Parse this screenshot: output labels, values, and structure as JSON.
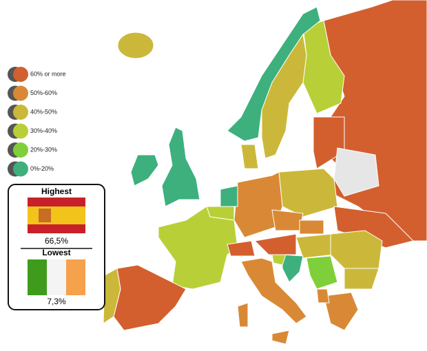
{
  "legend": {
    "items": [
      {
        "label": "60% or more",
        "color": "#d35f2e"
      },
      {
        "label": "50%-60%",
        "color": "#d98935"
      },
      {
        "label": "40%-50%",
        "color": "#cbb83a"
      },
      {
        "label": "30%-40%",
        "color": "#b9cf37"
      },
      {
        "label": "20%-30%",
        "color": "#7fcf3a"
      },
      {
        "label": "0%-20%",
        "color": "#3db07e"
      }
    ]
  },
  "highlights": {
    "highest": {
      "title": "Highest",
      "value": "66,5%"
    },
    "lowest": {
      "title": "Lowest",
      "value": "7,3%"
    }
  }
}
